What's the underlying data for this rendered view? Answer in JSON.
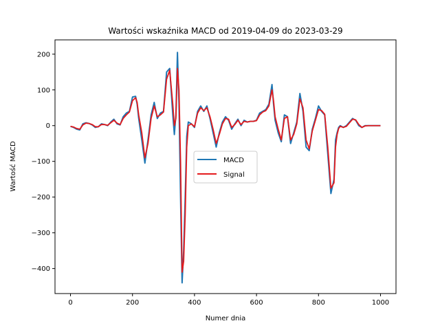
{
  "chart_data": {
    "type": "line",
    "title": "Wartości wskaźnika MACD od 2019-04-09 do 2023-03-29",
    "xlabel": "Numer dnia",
    "ylabel": "Wartość MACD",
    "xlim": [
      -50,
      1050
    ],
    "ylim": [
      -470,
      240
    ],
    "xticks": [
      0,
      200,
      400,
      600,
      800,
      1000
    ],
    "yticks": [
      -400,
      -300,
      -200,
      -100,
      0,
      100,
      200
    ],
    "ytick_labels": [
      "−400",
      "−300",
      "−200",
      "−100",
      "0",
      "100",
      "200"
    ],
    "grid": false,
    "legend_position": "center-left",
    "series": [
      {
        "name": "MACD",
        "color": "#1f77b4",
        "x": [
          0,
          10,
          20,
          30,
          40,
          50,
          60,
          70,
          80,
          90,
          100,
          110,
          120,
          130,
          140,
          150,
          160,
          170,
          180,
          190,
          200,
          210,
          215,
          220,
          230,
          240,
          250,
          260,
          270,
          280,
          290,
          300,
          310,
          320,
          330,
          335,
          340,
          345,
          350,
          355,
          360,
          365,
          370,
          375,
          380,
          390,
          400,
          410,
          420,
          430,
          440,
          450,
          460,
          470,
          480,
          490,
          500,
          510,
          520,
          530,
          540,
          550,
          560,
          570,
          580,
          590,
          600,
          610,
          620,
          630,
          640,
          650,
          655,
          660,
          670,
          680,
          690,
          700,
          710,
          720,
          730,
          740,
          750,
          760,
          770,
          780,
          790,
          800,
          810,
          820,
          830,
          840,
          850,
          855,
          860,
          865,
          870,
          880,
          890,
          900,
          910,
          920,
          930,
          940,
          950,
          960,
          970,
          980,
          990,
          1000
        ],
        "y": [
          -2,
          -5,
          -10,
          -12,
          5,
          8,
          6,
          2,
          -5,
          -3,
          5,
          3,
          0,
          10,
          18,
          5,
          2,
          25,
          35,
          40,
          80,
          82,
          60,
          20,
          -40,
          -105,
          -40,
          30,
          65,
          20,
          35,
          40,
          150,
          160,
          30,
          -25,
          30,
          205,
          60,
          -200,
          -440,
          -350,
          -200,
          -30,
          10,
          5,
          -5,
          40,
          55,
          40,
          55,
          20,
          -20,
          -60,
          -20,
          10,
          25,
          15,
          -10,
          5,
          18,
          0,
          15,
          10,
          12,
          12,
          15,
          35,
          40,
          45,
          60,
          115,
          60,
          15,
          -20,
          -45,
          30,
          25,
          -50,
          -20,
          10,
          90,
          40,
          -60,
          -70,
          -10,
          20,
          55,
          40,
          30,
          -80,
          -190,
          -150,
          -40,
          -20,
          -5,
          0,
          -5,
          0,
          10,
          20,
          15,
          0,
          -5,
          0,
          0,
          0,
          0,
          0,
          0
        ]
      },
      {
        "name": "Signal",
        "color": "#e41a1c",
        "x": [
          0,
          10,
          20,
          30,
          40,
          50,
          60,
          70,
          80,
          90,
          100,
          110,
          120,
          130,
          140,
          150,
          160,
          170,
          180,
          190,
          200,
          210,
          215,
          220,
          230,
          240,
          250,
          260,
          270,
          280,
          290,
          300,
          310,
          320,
          330,
          335,
          340,
          345,
          350,
          355,
          360,
          365,
          370,
          375,
          380,
          390,
          400,
          410,
          420,
          430,
          440,
          450,
          460,
          470,
          480,
          490,
          500,
          510,
          520,
          530,
          540,
          550,
          560,
          570,
          580,
          590,
          600,
          610,
          620,
          630,
          640,
          650,
          655,
          660,
          670,
          680,
          690,
          700,
          710,
          720,
          730,
          740,
          750,
          760,
          770,
          780,
          790,
          800,
          810,
          820,
          830,
          840,
          850,
          855,
          860,
          865,
          870,
          880,
          890,
          900,
          910,
          920,
          930,
          940,
          950,
          960,
          970,
          980,
          990,
          1000
        ],
        "y": [
          -2,
          -4,
          -8,
          -10,
          2,
          7,
          6,
          3,
          -3,
          -3,
          3,
          3,
          1,
          8,
          15,
          7,
          3,
          20,
          30,
          38,
          70,
          78,
          65,
          30,
          -20,
          -90,
          -50,
          20,
          55,
          25,
          30,
          38,
          130,
          155,
          60,
          0,
          20,
          160,
          100,
          -100,
          -410,
          -380,
          -250,
          -60,
          0,
          5,
          -3,
          35,
          50,
          42,
          50,
          25,
          -10,
          -50,
          -25,
          5,
          20,
          18,
          -5,
          3,
          15,
          3,
          12,
          10,
          12,
          12,
          14,
          30,
          38,
          42,
          55,
          100,
          70,
          25,
          -10,
          -40,
          20,
          25,
          -40,
          -25,
          5,
          75,
          50,
          -40,
          -65,
          -15,
          15,
          45,
          42,
          32,
          -60,
          -175,
          -160,
          -60,
          -25,
          -8,
          -2,
          -5,
          -2,
          8,
          18,
          16,
          3,
          -5,
          -1,
          0,
          0,
          0,
          0,
          0
        ]
      }
    ]
  }
}
